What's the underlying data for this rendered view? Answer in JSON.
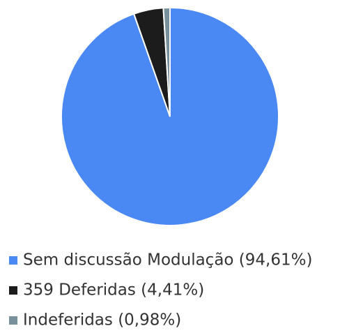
{
  "chart_data": {
    "type": "pie",
    "categories": [
      "Sem discussão Modulação (94,61%)",
      "359 Deferidas (4,41%)",
      "Indeferidas (0,98%)"
    ],
    "values": [
      94.61,
      4.41,
      0.98
    ],
    "colors": [
      "#4a89f3",
      "#1c1c1c",
      "#78909c"
    ],
    "legend": "bottom"
  }
}
